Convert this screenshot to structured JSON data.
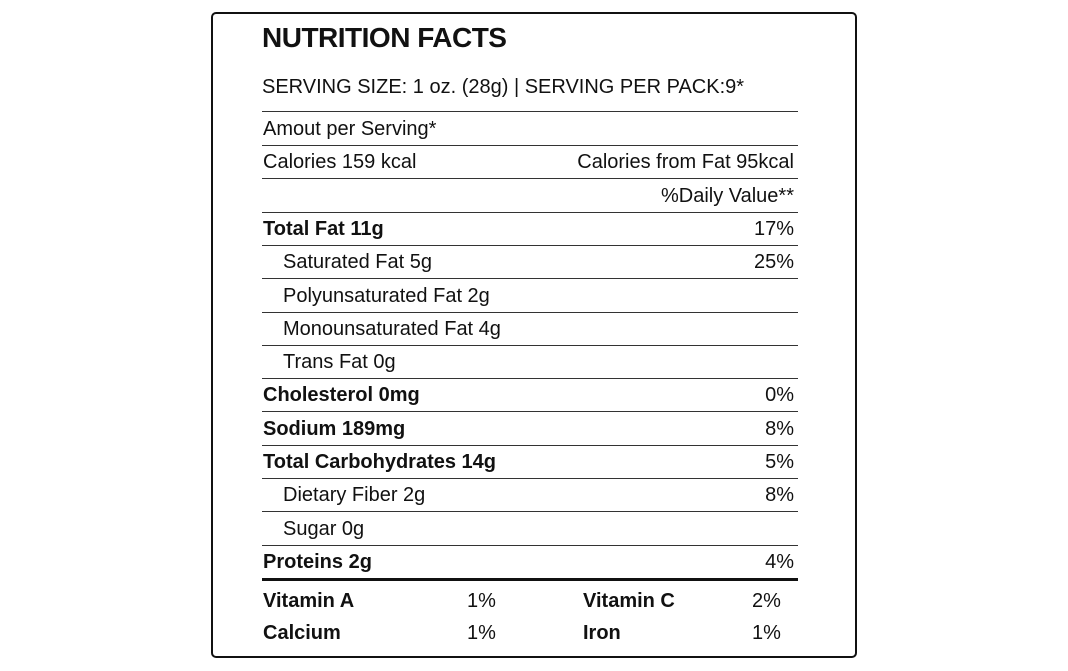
{
  "header": {
    "title": "NUTRITION FACTS",
    "serving": "SERVING SIZE: 1 oz. (28g) | SERVING PER PACK:9*"
  },
  "rows": [
    {
      "label": "Amout per Serving*"
    },
    {
      "label": "Calories 159 kcal",
      "value": "Calories from Fat 95kcal"
    },
    {
      "value": "%Daily Value**"
    },
    {
      "label": "Total Fat 11g",
      "value": "17%",
      "bold": true
    },
    {
      "label": "Saturated Fat 5g",
      "value": "25%",
      "indent": true
    },
    {
      "label": "Polyunsaturated Fat 2g",
      "indent": true
    },
    {
      "label": "Monounsaturated Fat 4g",
      "indent": true
    },
    {
      "label": "Trans Fat 0g",
      "indent": true
    },
    {
      "label": "Cholesterol 0mg",
      "value": "0%",
      "bold": true
    },
    {
      "label": "Sodium 189mg",
      "value": "8%",
      "bold": true
    },
    {
      "label": "Total Carbohydrates 14g",
      "value": "5%",
      "bold": true
    },
    {
      "label": "Dietary Fiber 2g",
      "value": "8%",
      "indent": true
    },
    {
      "label": "Sugar 0g",
      "indent": true
    },
    {
      "label": "Proteins 2g",
      "value": "4%",
      "bold": true
    }
  ],
  "vitamins": [
    [
      "Vitamin A",
      "1%",
      "Vitamin C",
      "2%"
    ],
    [
      "Calcium",
      "1%",
      "Iron",
      "1%"
    ]
  ]
}
